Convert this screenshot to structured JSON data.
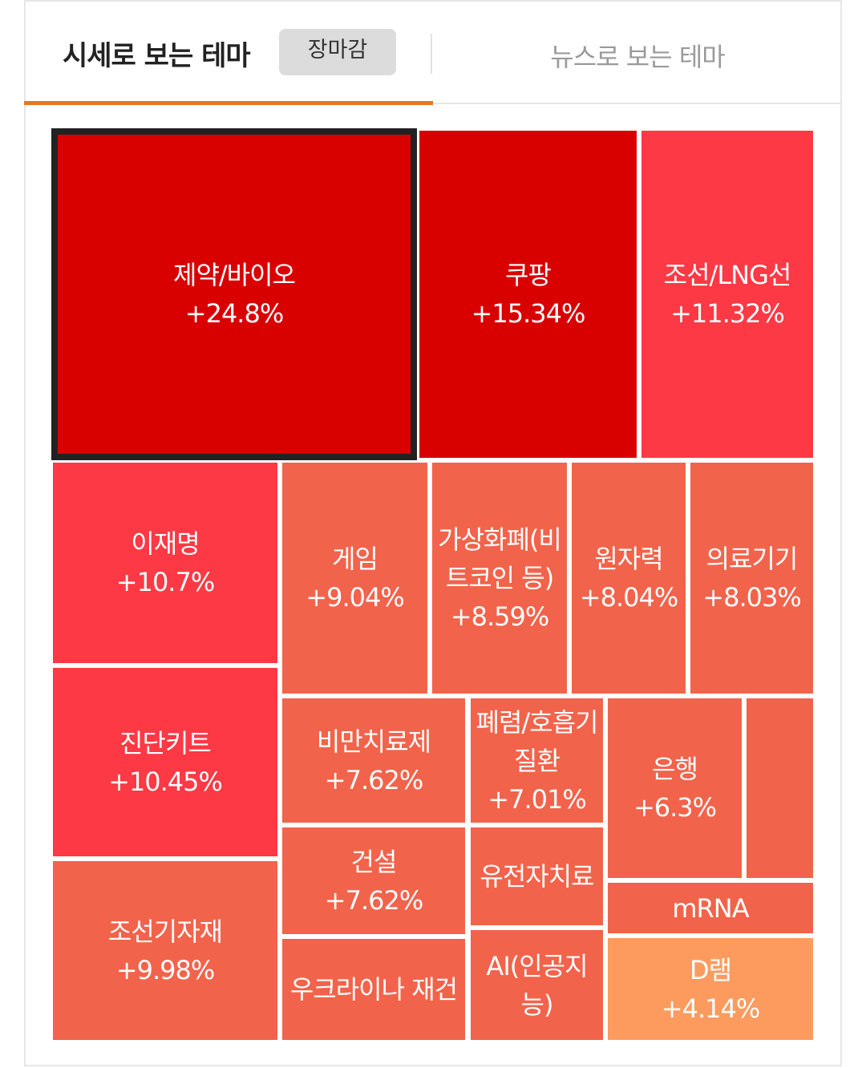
{
  "tabs": {
    "active_label": "시세로 보는 테마",
    "badge_label": "장마감",
    "inactive_label": "뉴스로 보는 테마"
  },
  "colors": {
    "accent": "#e87722",
    "level_1": "#d90000",
    "level_2": "#fc3944",
    "level_3": "#f2634b",
    "level_4": "#fd9b5e"
  },
  "themes": [
    {
      "name": "제약/바이오",
      "change": "+24.8%",
      "color": "#d90000",
      "selected": true
    },
    {
      "name": "쿠팡",
      "change": "+15.34%",
      "color": "#d90000"
    },
    {
      "name": "조선/LNG선",
      "change": "+11.32%",
      "color": "#fc3944"
    },
    {
      "name": "이재명",
      "change": "+10.7%",
      "color": "#fc3944"
    },
    {
      "name": "게임",
      "change": "+9.04%",
      "color": "#f2634b"
    },
    {
      "name": "가상화폐(비트코인 등)",
      "change": "+8.59%",
      "color": "#f2634b"
    },
    {
      "name": "원자력",
      "change": "+8.04%",
      "color": "#f2634b"
    },
    {
      "name": "의료기기",
      "change": "+8.03%",
      "color": "#f2634b"
    },
    {
      "name": "진단키트",
      "change": "+10.45%",
      "color": "#fc3944"
    },
    {
      "name": "비만치료제",
      "change": "+7.62%",
      "color": "#f2634b"
    },
    {
      "name": "폐렴/호흡기질환",
      "change": "+7.01%",
      "color": "#f2634b"
    },
    {
      "name": "은행",
      "change": "+6.3%",
      "color": "#f2634b"
    },
    {
      "name": "",
      "change": "",
      "color": "#f2634b"
    },
    {
      "name": "조선기자재",
      "change": "+9.98%",
      "color": "#f2634b"
    },
    {
      "name": "건설",
      "change": "+7.62%",
      "color": "#f2634b"
    },
    {
      "name": "유전자치료",
      "change": "",
      "color": "#f2634b"
    },
    {
      "name": "mRNA",
      "change": "",
      "color": "#f2634b"
    },
    {
      "name": "우크라이나 재건",
      "change": "",
      "color": "#f2634b"
    },
    {
      "name": "AI(인공지능)",
      "change": "",
      "color": "#f2634b"
    },
    {
      "name": "D램",
      "change": "+4.14%",
      "color": "#fd9b5e"
    }
  ]
}
